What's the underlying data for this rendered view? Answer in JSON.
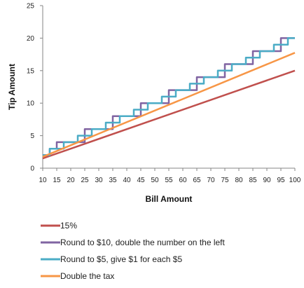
{
  "chart_data": {
    "type": "line",
    "xlabel": "Bill Amount",
    "ylabel": "Tip Amount",
    "xlim": [
      10,
      100
    ],
    "ylim": [
      0,
      25
    ],
    "x_ticks": [
      10,
      15,
      20,
      25,
      30,
      35,
      40,
      45,
      50,
      55,
      60,
      65,
      70,
      75,
      80,
      85,
      90,
      95,
      100
    ],
    "y_ticks": [
      0,
      5,
      10,
      15,
      20,
      25
    ],
    "grid": false,
    "legend_position": "bottom",
    "series": [
      {
        "name": "15%",
        "color": "#c0504d",
        "x": [
          10,
          100
        ],
        "y": [
          1.5,
          15
        ]
      },
      {
        "name": "Round to $10, double the number on the left",
        "color": "#8064a2",
        "x": [
          10,
          12.5,
          12.5,
          15,
          15,
          25,
          25,
          35,
          35,
          45,
          45,
          55,
          55,
          65,
          65,
          75,
          75,
          85,
          85,
          95,
          95,
          100
        ],
        "y": [
          2,
          2,
          3,
          3,
          4,
          4,
          6,
          6,
          8,
          8,
          10,
          10,
          12,
          12,
          14,
          14,
          16,
          16,
          18,
          18,
          20,
          20
        ]
      },
      {
        "name": "Round to $5, give $1 for each $5",
        "color": "#4bacc6",
        "x": [
          10,
          12.5,
          12.5,
          17.5,
          17.5,
          22.5,
          22.5,
          27.5,
          27.5,
          32.5,
          32.5,
          37.5,
          37.5,
          42.5,
          42.5,
          47.5,
          47.5,
          52.5,
          52.5,
          57.5,
          57.5,
          62.5,
          62.5,
          67.5,
          67.5,
          72.5,
          72.5,
          77.5,
          77.5,
          82.5,
          82.5,
          87.5,
          87.5,
          92.5,
          92.5,
          97.5,
          97.5,
          100
        ],
        "y": [
          2,
          2,
          3,
          3,
          4,
          4,
          5,
          5,
          6,
          6,
          7,
          7,
          8,
          8,
          9,
          9,
          10,
          10,
          11,
          11,
          12,
          12,
          13,
          13,
          14,
          14,
          15,
          15,
          16,
          16,
          17,
          17,
          18,
          18,
          19,
          19,
          20,
          20
        ]
      },
      {
        "name": "Double the tax",
        "color": "#f79646",
        "x": [
          10,
          100
        ],
        "y": [
          1.75,
          17.75
        ]
      }
    ]
  }
}
